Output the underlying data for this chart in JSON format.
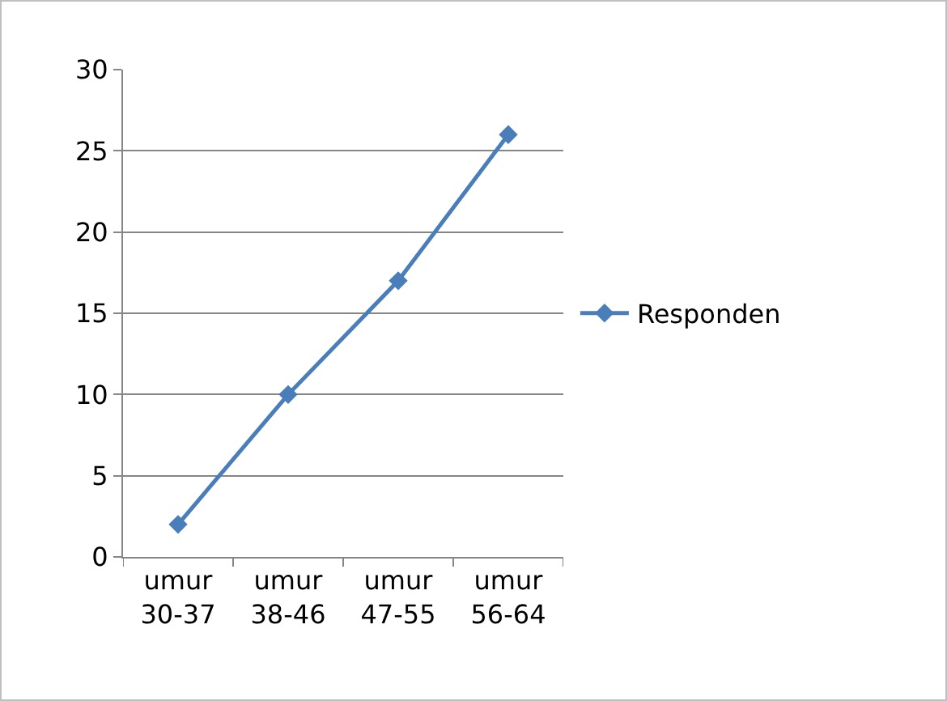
{
  "chart_data": {
    "type": "line",
    "categories": [
      "umur 30-37",
      "umur 38-46",
      "umur 47-55",
      "umur 56-64"
    ],
    "series": [
      {
        "name": "Responden",
        "color": "#4a7ebb",
        "values": [
          2,
          10,
          17,
          26
        ]
      }
    ],
    "ylim": [
      0,
      30
    ],
    "yticks": [
      0,
      5,
      10,
      15,
      20,
      25,
      30
    ],
    "grid": "y",
    "legend": "right",
    "marker": "diamond",
    "line_style": "solid"
  }
}
